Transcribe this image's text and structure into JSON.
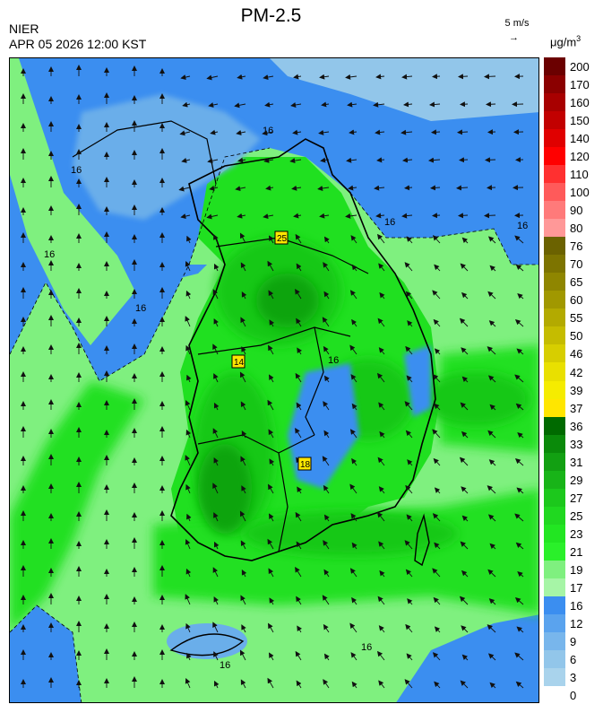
{
  "header": {
    "title": "PM-2.5",
    "org": "NIER",
    "datetime": "APR 05 2026 12:00 KST",
    "wind_ref": "5 m/s",
    "wind_arrow": "→",
    "unit_base": "μg/m",
    "unit_exp": "3"
  },
  "map": {
    "contour_label": "16",
    "station_labels": [
      "25",
      "14",
      "18"
    ],
    "colors": {
      "sea_blue": "#3b8ef0",
      "light_blue": "#6aaeea",
      "pale_blue": "#92c6ea",
      "light_green": "#7ff07f",
      "green": "#20e020",
      "mid_green": "#15c815",
      "dark_green": "#0ea40e",
      "yellow": "#ffe600"
    }
  },
  "legend": {
    "labels": [
      "200",
      "170",
      "160",
      "150",
      "140",
      "120",
      "110",
      "100",
      "90",
      "80",
      "76",
      "70",
      "65",
      "60",
      "55",
      "50",
      "46",
      "42",
      "39",
      "37",
      "36",
      "33",
      "31",
      "29",
      "27",
      "25",
      "23",
      "21",
      "19",
      "17",
      "16",
      "12",
      "9",
      "6",
      "3",
      "0"
    ],
    "colors": [
      "#6b0000",
      "#8b0000",
      "#a80000",
      "#c20000",
      "#e00000",
      "#ff0000",
      "#ff3030",
      "#ff5a5a",
      "#ff7a7a",
      "#ff9898",
      "#6b6200",
      "#7d7400",
      "#8f8600",
      "#a19800",
      "#b3aa00",
      "#c5bc00",
      "#d7ce00",
      "#e9e000",
      "#f5ec00",
      "#ffe600",
      "#006a00",
      "#0a8a0a",
      "#12a012",
      "#18b418",
      "#1cc81c",
      "#20d820",
      "#22e622",
      "#2af02a",
      "#7ff07f",
      "#a6f5a6",
      "#3b8ef0",
      "#5aa3ee",
      "#78b6ec",
      "#92c6ea",
      "#a9d3ec"
    ]
  }
}
